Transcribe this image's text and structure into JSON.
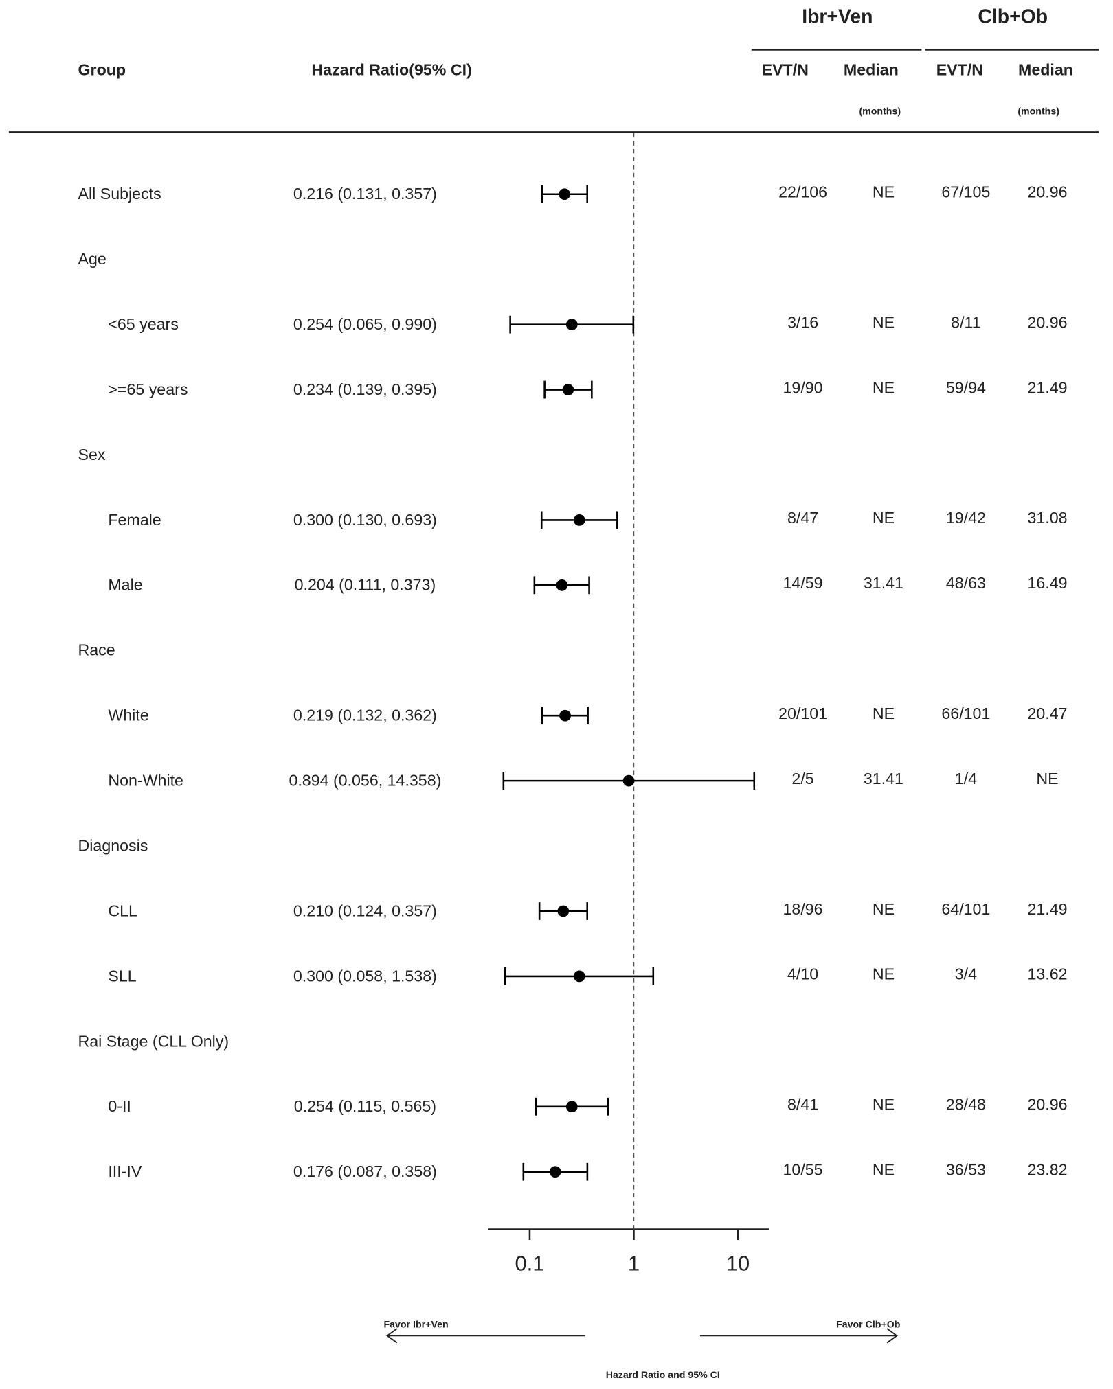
{
  "chart_data": {
    "type": "forest",
    "columns": {
      "group": "Group",
      "hr": "Hazard Ratio(95% CI)",
      "arms": [
        {
          "name": "Ibr+Ven",
          "evt": "EVT/N",
          "median": "Median",
          "unit": "(months)"
        },
        {
          "name": "Clb+Ob",
          "evt": "EVT/N",
          "median": "Median",
          "unit": "(months)"
        }
      ]
    },
    "overall": {
      "label": "All Subjects",
      "hr": 0.216,
      "lo": 0.131,
      "hi": 0.357,
      "hr_label": "0.216 (0.131, 0.357)",
      "arms": [
        [
          "22/106",
          "NE"
        ],
        [
          "67/105",
          "20.96"
        ]
      ]
    },
    "groups": [
      {
        "label": "Age",
        "rows": [
          {
            "label": "<65 years",
            "hr": 0.254,
            "lo": 0.065,
            "hi": 0.99,
            "hr_label": "0.254 (0.065, 0.990)",
            "arms": [
              [
                "3/16",
                "NE"
              ],
              [
                "8/11",
                "20.96"
              ]
            ]
          },
          {
            "label": ">=65 years",
            "hr": 0.234,
            "lo": 0.139,
            "hi": 0.395,
            "hr_label": "0.234 (0.139, 0.395)",
            "arms": [
              [
                "19/90",
                "NE"
              ],
              [
                "59/94",
                "21.49"
              ]
            ]
          }
        ]
      },
      {
        "label": "Sex",
        "rows": [
          {
            "label": "Female",
            "hr": 0.3,
            "lo": 0.13,
            "hi": 0.693,
            "hr_label": "0.300 (0.130, 0.693)",
            "arms": [
              [
                "8/47",
                "NE"
              ],
              [
                "19/42",
                "31.08"
              ]
            ]
          },
          {
            "label": "Male",
            "hr": 0.204,
            "lo": 0.111,
            "hi": 0.373,
            "hr_label": "0.204 (0.111, 0.373)",
            "arms": [
              [
                "14/59",
                "31.41"
              ],
              [
                "48/63",
                "16.49"
              ]
            ]
          }
        ]
      },
      {
        "label": "Race",
        "rows": [
          {
            "label": "White",
            "hr": 0.219,
            "lo": 0.132,
            "hi": 0.362,
            "hr_label": "0.219 (0.132, 0.362)",
            "arms": [
              [
                "20/101",
                "NE"
              ],
              [
                "66/101",
                "20.47"
              ]
            ]
          },
          {
            "label": "Non-White",
            "hr": 0.894,
            "lo": 0.056,
            "hi": 14.358,
            "hr_label": "0.894 (0.056, 14.358)",
            "arms": [
              [
                "2/5",
                "31.41"
              ],
              [
                "1/4",
                "NE"
              ]
            ]
          }
        ]
      },
      {
        "label": "Diagnosis",
        "rows": [
          {
            "label": "CLL",
            "hr": 0.21,
            "lo": 0.124,
            "hi": 0.357,
            "hr_label": "0.210 (0.124, 0.357)",
            "arms": [
              [
                "18/96",
                "NE"
              ],
              [
                "64/101",
                "21.49"
              ]
            ]
          },
          {
            "label": "SLL",
            "hr": 0.3,
            "lo": 0.058,
            "hi": 1.538,
            "hr_label": "0.300 (0.058, 1.538)",
            "arms": [
              [
                "4/10",
                "NE"
              ],
              [
                "3/4",
                "13.62"
              ]
            ]
          }
        ]
      },
      {
        "label": "Rai Stage (CLL Only)",
        "rows": [
          {
            "label": "0-II",
            "hr": 0.254,
            "lo": 0.115,
            "hi": 0.565,
            "hr_label": "0.254 (0.115, 0.565)",
            "arms": [
              [
                "8/41",
                "NE"
              ],
              [
                "28/48",
                "20.96"
              ]
            ]
          },
          {
            "label": "III-IV",
            "hr": 0.176,
            "lo": 0.087,
            "hi": 0.358,
            "hr_label": "0.176 (0.087, 0.358)",
            "arms": [
              [
                "10/55",
                "NE"
              ],
              [
                "36/53",
                "23.82"
              ]
            ]
          }
        ]
      }
    ],
    "log_scale": true,
    "xlim": [
      0.04,
      20
    ],
    "xticks": [
      0.1,
      1,
      10
    ],
    "reference_line": 1,
    "favor_left": "Favor Ibr+Ven",
    "favor_right": "Favor Clb+Ob",
    "xlabel": "Hazard Ratio and 95% CI",
    "color": "#000000"
  }
}
